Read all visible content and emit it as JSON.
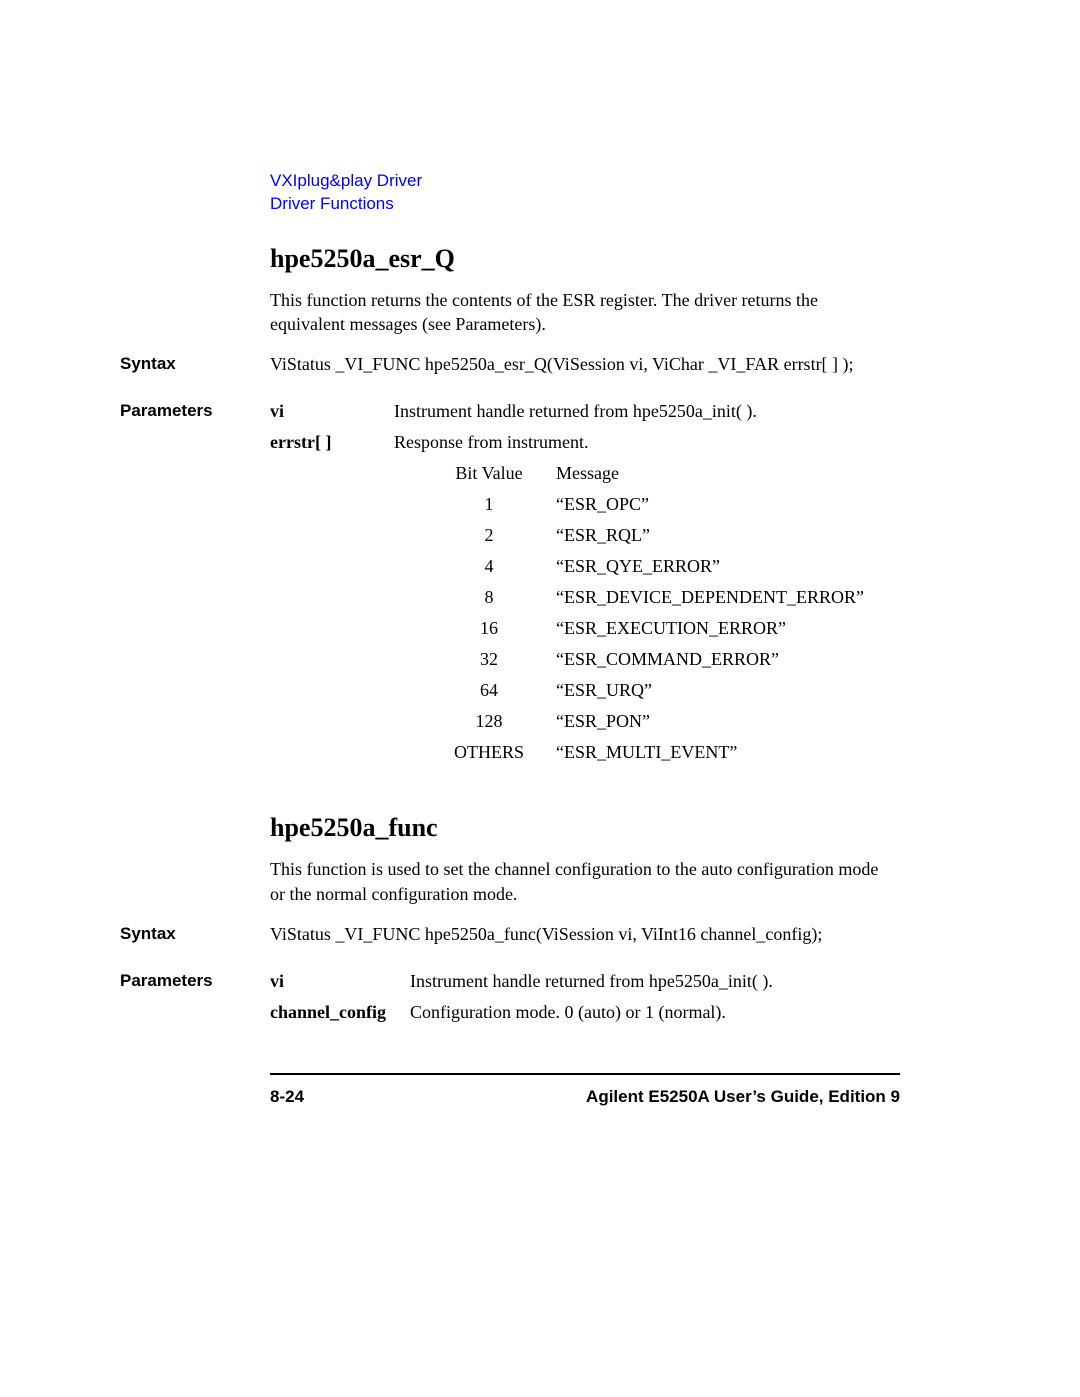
{
  "breadcrumb": {
    "line1": "VXIplug&play Driver",
    "line2": "Driver Functions"
  },
  "section1": {
    "title": "hpe5250a_esr_Q",
    "description": "This function returns the contents of the ESR register. The driver returns the equivalent messages (see Parameters).",
    "syntax_label": "Syntax",
    "syntax_value": "ViStatus _VI_FUNC hpe5250a_esr_Q(ViSession vi, ViChar _VI_FAR errstr[ ] );",
    "parameters_label": "Parameters",
    "param_vi_name": "vi",
    "param_vi_desc": "Instrument handle returned from hpe5250a_init( ).",
    "param_errstr_name": "errstr[ ]",
    "param_errstr_desc": "Response from instrument.",
    "bit_header_val": "Bit Value",
    "bit_header_msg": "Message",
    "bit_rows": [
      {
        "val": "1",
        "msg": "“ESR_OPC”"
      },
      {
        "val": "2",
        "msg": "“ESR_RQL”"
      },
      {
        "val": "4",
        "msg": "“ESR_QYE_ERROR”"
      },
      {
        "val": "8",
        "msg": "“ESR_DEVICE_DEPENDENT_ERROR”"
      },
      {
        "val": "16",
        "msg": "“ESR_EXECUTION_ERROR”"
      },
      {
        "val": "32",
        "msg": "“ESR_COMMAND_ERROR”"
      },
      {
        "val": "64",
        "msg": "“ESR_URQ”"
      },
      {
        "val": "128",
        "msg": "“ESR_PON”"
      },
      {
        "val": "OTHERS",
        "msg": "“ESR_MULTI_EVENT”"
      }
    ]
  },
  "section2": {
    "title": "hpe5250a_func",
    "description": "This function is used to set the channel configuration to the auto configuration mode or the normal configuration mode.",
    "syntax_label": "Syntax",
    "syntax_value": "ViStatus _VI_FUNC hpe5250a_func(ViSession vi, ViInt16 channel_config);",
    "parameters_label": "Parameters",
    "param_vi_name": "vi",
    "param_vi_desc": "Instrument handle returned from hpe5250a_init( ).",
    "param_cc_name": "channel_config",
    "param_cc_desc": "Configuration mode. 0 (auto) or 1 (normal)."
  },
  "footer": {
    "page_number": "8-24",
    "doc_title": "Agilent E5250A User’s Guide, Edition 9"
  }
}
